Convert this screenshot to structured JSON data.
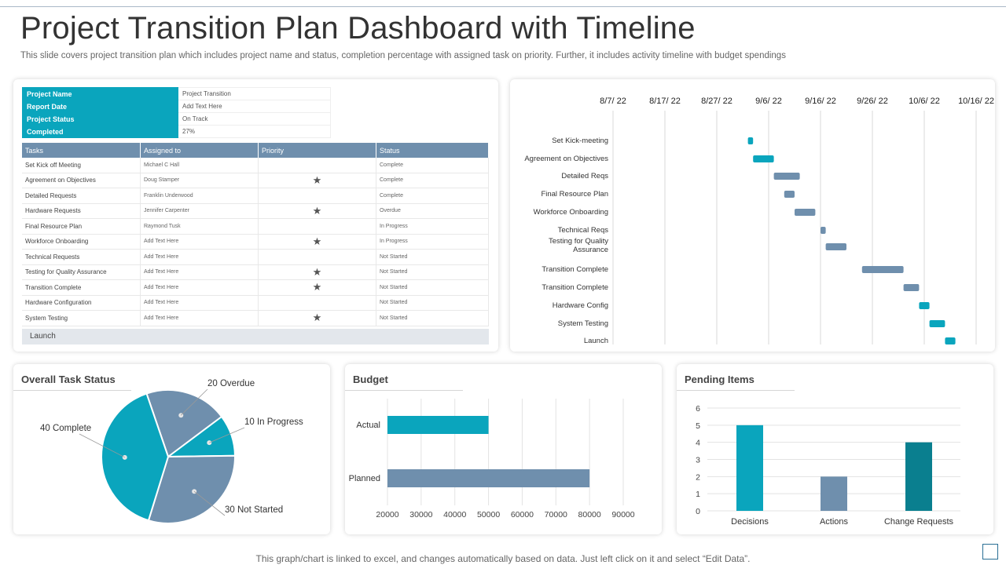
{
  "header": {
    "title": "Project Transition Plan Dashboard with Timeline",
    "subtitle": "This slide covers project transition plan which includes project name and status, completion percentage with assigned task on priority. Further,  it includes activity timeline with budget spendings"
  },
  "project_info": [
    {
      "label": "Project Name",
      "value": "Project Transition"
    },
    {
      "label": "Report Date",
      "value": "Add Text Here"
    },
    {
      "label": "Project Status",
      "value": "On Track"
    },
    {
      "label": "Completed",
      "value": "27%"
    }
  ],
  "task_table": {
    "headers": [
      "Tasks",
      "Assigned to",
      "Priority",
      "Status"
    ],
    "rows": [
      {
        "task": "Set Kick off Meeting",
        "assigned": "Michael C Hall",
        "priority": "",
        "status": "Complete"
      },
      {
        "task": "Agreement on Objectives",
        "assigned": "Doug Stamper",
        "priority": "★",
        "status": "Complete"
      },
      {
        "task": "Detailed Requests",
        "assigned": "Franklin Underwood",
        "priority": "",
        "status": "Complete"
      },
      {
        "task": "Hardware Requests",
        "assigned": "Jennifer Carpenter",
        "priority": "★",
        "status": "Overdue"
      },
      {
        "task": "Final Resource Plan",
        "assigned": "Raymond Tusk",
        "priority": "",
        "status": "In Progress"
      },
      {
        "task": "Workforce Onboarding",
        "assigned": "Add Text Here",
        "priority": "★",
        "status": "In Progress"
      },
      {
        "task": "Technical Requests",
        "assigned": "Add Text Here",
        "priority": "",
        "status": "Not Started"
      },
      {
        "task": "Testing for Quality Assurance",
        "assigned": "Add Text Here",
        "priority": "★",
        "status": "Not Started"
      },
      {
        "task": "Transition Complete",
        "assigned": "Add Text Here",
        "priority": "★",
        "status": "Not Started"
      },
      {
        "task": "Hardware Configuration",
        "assigned": "Add Text Here",
        "priority": "",
        "status": "Not Started"
      },
      {
        "task": "System Testing",
        "assigned": "Add Text Here",
        "priority": "★",
        "status": "Not Started"
      }
    ],
    "launch_label": "Launch"
  },
  "chart_data": [
    {
      "type": "gantt",
      "x_ticks": [
        "8/7/ 22",
        "8/17/ 22",
        "8/27/ 22",
        "9/6/ 22",
        "9/16/ 22",
        "9/26/ 22",
        "10/6/ 22",
        "10/16/ 22"
      ],
      "x_start": "2022-08-07",
      "x_end": "2022-10-16",
      "tasks": [
        {
          "label": "Set Kick-meeting",
          "start": "2022-09-02",
          "end": "2022-09-03",
          "color": "#0aa5bd"
        },
        {
          "label": "Agreement on Objectives",
          "start": "2022-09-03",
          "end": "2022-09-07",
          "color": "#0aa5bd"
        },
        {
          "label": "Detailed Reqs",
          "start": "2022-09-07",
          "end": "2022-09-12",
          "color": "#6f8fad"
        },
        {
          "label": "Final Resource Plan",
          "start": "2022-09-09",
          "end": "2022-09-11",
          "color": "#6f8fad"
        },
        {
          "label": "Workforce Onboarding",
          "start": "2022-09-11",
          "end": "2022-09-15",
          "color": "#6f8fad"
        },
        {
          "label": "Technical Reqs",
          "start": "2022-09-16",
          "end": "2022-09-17",
          "color": "#6f8fad"
        },
        {
          "label": "Testing for Quality Assurance",
          "start": "2022-09-17",
          "end": "2022-09-21",
          "color": "#6f8fad"
        },
        {
          "label": "Transition Complete",
          "start": "2022-09-24",
          "end": "2022-10-02",
          "color": "#6f8fad"
        },
        {
          "label": "Transition Complete",
          "start": "2022-10-02",
          "end": "2022-10-05",
          "color": "#6f8fad"
        },
        {
          "label": "Hardware Config",
          "start": "2022-10-05",
          "end": "2022-10-07",
          "color": "#0aa5bd"
        },
        {
          "label": "System Testing",
          "start": "2022-10-07",
          "end": "2022-10-10",
          "color": "#0aa5bd"
        },
        {
          "label": "Launch",
          "start": "2022-10-10",
          "end": "2022-10-12",
          "color": "#0aa5bd"
        }
      ]
    },
    {
      "type": "pie",
      "title": "Overall Task Status",
      "slices": [
        {
          "label": "20 Overdue",
          "value": 20,
          "color": "#6f8fad"
        },
        {
          "label": "10 In Progress",
          "value": 10,
          "color": "#0aa5bd"
        },
        {
          "label": "30 Not Started",
          "value": 30,
          "color": "#6f8fad"
        },
        {
          "label": "40 Complete",
          "value": 40,
          "color": "#0aa5bd"
        }
      ]
    },
    {
      "type": "bar",
      "orientation": "horizontal",
      "title": "Budget",
      "categories": [
        "Actual",
        "Planned"
      ],
      "values": [
        50000,
        80000
      ],
      "colors": [
        "#0aa5bd",
        "#6f8fad"
      ],
      "xlim": [
        20000,
        90000
      ],
      "x_ticks": [
        "20000",
        "30000",
        "40000",
        "50000",
        "60000",
        "70000",
        "80000",
        "90000"
      ]
    },
    {
      "type": "bar",
      "title": "Pending Items",
      "categories": [
        "Decisions",
        "Actions",
        "Change Requests"
      ],
      "values": [
        5,
        2,
        4
      ],
      "colors": [
        "#0aa5bd",
        "#6f8fad",
        "#0a7f8f"
      ],
      "ylim": [
        0,
        6
      ],
      "y_ticks": [
        "0",
        "1",
        "2",
        "3",
        "4",
        "5",
        "6"
      ]
    }
  ],
  "footer": {
    "note": "This graph/chart is linked to excel,  and changes automatically based on data. Just left click on it and select “Edit Data”."
  }
}
